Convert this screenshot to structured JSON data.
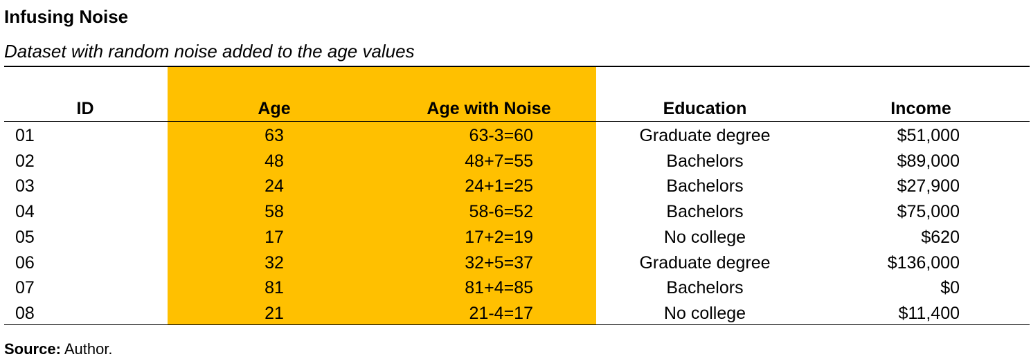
{
  "title": "Infusing Noise",
  "subtitle": "Dataset with random noise added to the age values",
  "highlight_color": "#ffc000",
  "table": {
    "headers": {
      "id": "ID",
      "age": "Age",
      "age_noise": "Age with Noise",
      "education": "Education",
      "income": "Income"
    },
    "rows": [
      {
        "id": "01",
        "age": "63",
        "age_noise": "63-3=60",
        "education": "Graduate degree",
        "income": "$51,000"
      },
      {
        "id": "02",
        "age": "48",
        "age_noise": "48+7=55",
        "education": "Bachelors",
        "income": "$89,000"
      },
      {
        "id": "03",
        "age": "24",
        "age_noise": "24+1=25",
        "education": "Bachelors",
        "income": "$27,900"
      },
      {
        "id": "04",
        "age": "58",
        "age_noise": "58-6=52",
        "education": "Bachelors",
        "income": "$75,000"
      },
      {
        "id": "05",
        "age": "17",
        "age_noise": "17+2=19",
        "education": "No college",
        "income": "$620"
      },
      {
        "id": "06",
        "age": "32",
        "age_noise": "32+5=37",
        "education": "Graduate degree",
        "income": "$136,000"
      },
      {
        "id": "07",
        "age": "81",
        "age_noise": "81+4=85",
        "education": "Bachelors",
        "income": "$0"
      },
      {
        "id": "08",
        "age": "21",
        "age_noise": "21-4=17",
        "education": "No college",
        "income": "$11,400"
      }
    ]
  },
  "source": {
    "label": "Source:",
    "text": "Author."
  }
}
